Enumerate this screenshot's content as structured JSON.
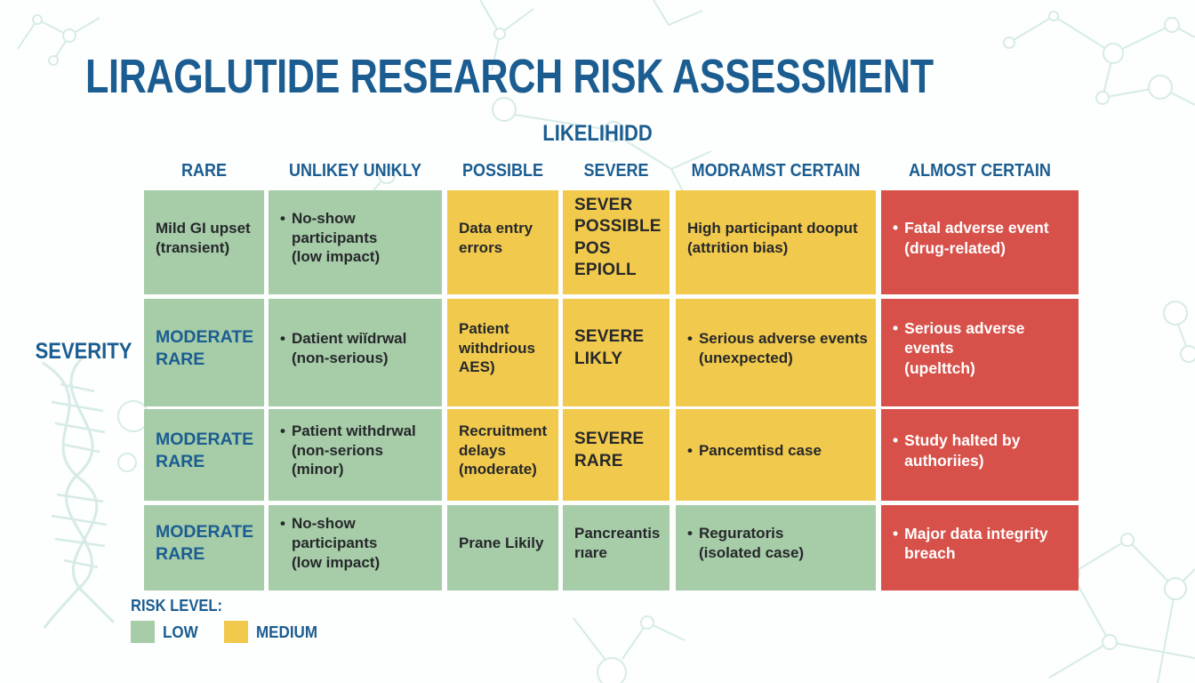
{
  "title": "LIRAGLUTIDE RESEARCH RISK ASSESSMENT",
  "axis": {
    "likelihood_label": "LIKELIHIDD",
    "severity_label": "SEVERITY"
  },
  "columns": [
    "RARE",
    "UNLIKEY UNIKLY",
    "POSSIBLE",
    "SEVERE",
    "MODRAMST CERTAIN",
    "ALMOST CERTAIN"
  ],
  "matrix": {
    "cells": [
      {
        "row": 0,
        "col": 0,
        "tone": "low",
        "style": "dark",
        "bullet": false,
        "lines": [
          "Mild GI upset",
          "(transient)"
        ]
      },
      {
        "row": 0,
        "col": 1,
        "tone": "low",
        "style": "dark",
        "bullet": true,
        "lines": [
          "No-show participants",
          "(low impact)"
        ]
      },
      {
        "row": 0,
        "col": 2,
        "tone": "medium",
        "style": "dark",
        "bullet": false,
        "lines": [
          "Data entry",
          "errors"
        ]
      },
      {
        "row": 0,
        "col": 3,
        "tone": "medium",
        "style": "darkbold",
        "bullet": false,
        "lines": [
          "SEVER",
          "POSSIBLE",
          "POS EPIOLL"
        ]
      },
      {
        "row": 0,
        "col": 4,
        "tone": "medium",
        "style": "dark",
        "bullet": false,
        "lines": [
          "High participant dooput",
          "(attrition bias)"
        ]
      },
      {
        "row": 0,
        "col": 5,
        "tone": "high",
        "style": "white",
        "bullet": true,
        "lines": [
          "Fatal adverse event",
          "(drug-related)"
        ]
      },
      {
        "row": 1,
        "col": 0,
        "tone": "low",
        "style": "blue",
        "bullet": false,
        "lines": [
          "MODERATE",
          "RARE"
        ]
      },
      {
        "row": 1,
        "col": 1,
        "tone": "low",
        "style": "dark",
        "bullet": true,
        "lines": [
          "Datient wiĭdrwal",
          "(non-serious)"
        ]
      },
      {
        "row": 1,
        "col": 2,
        "tone": "medium",
        "style": "dark",
        "bullet": false,
        "lines": [
          "Patient",
          "withdrious",
          "AES)"
        ]
      },
      {
        "row": 1,
        "col": 3,
        "tone": "medium",
        "style": "darkbold",
        "bullet": false,
        "lines": [
          "SEVERE",
          "LIKLY"
        ]
      },
      {
        "row": 1,
        "col": 4,
        "tone": "medium",
        "style": "dark",
        "bullet": true,
        "lines": [
          "Serious adverse events",
          "(unexpected)"
        ]
      },
      {
        "row": 1,
        "col": 5,
        "tone": "high",
        "style": "white",
        "bullet": true,
        "lines": [
          "Serious adverse events",
          "(upelttch)"
        ]
      },
      {
        "row": 2,
        "col": 0,
        "tone": "low",
        "style": "blue",
        "bullet": false,
        "lines": [
          "MODERATE",
          "RARE"
        ]
      },
      {
        "row": 2,
        "col": 1,
        "tone": "low",
        "style": "dark",
        "bullet": true,
        "lines": [
          "Patient withdrwal",
          "(non-serions (minor)"
        ]
      },
      {
        "row": 2,
        "col": 2,
        "tone": "medium",
        "style": "dark",
        "bullet": false,
        "lines": [
          "Recruitment",
          "delays",
          "(moderate)"
        ]
      },
      {
        "row": 2,
        "col": 3,
        "tone": "medium",
        "style": "darkbold",
        "bullet": false,
        "lines": [
          "SEVERE",
          "RARE"
        ]
      },
      {
        "row": 2,
        "col": 4,
        "tone": "medium",
        "style": "dark",
        "bullet": true,
        "lines": [
          "Pancemtisd case"
        ]
      },
      {
        "row": 2,
        "col": 5,
        "tone": "high",
        "style": "white",
        "bullet": true,
        "lines": [
          "Study halted by",
          "authoriies)"
        ]
      },
      {
        "row": 3,
        "col": 0,
        "tone": "low",
        "style": "blue",
        "bullet": false,
        "lines": [
          "MODERATE",
          "RARE"
        ]
      },
      {
        "row": 3,
        "col": 1,
        "tone": "low",
        "style": "dark",
        "bullet": true,
        "lines": [
          "No-show participants",
          "(low impact)"
        ]
      },
      {
        "row": 3,
        "col": 2,
        "tone": "low",
        "style": "dark",
        "bullet": false,
        "lines": [
          "Prane Likily"
        ]
      },
      {
        "row": 3,
        "col": 3,
        "tone": "low",
        "style": "dark",
        "bullet": false,
        "lines": [
          "Pancreantis",
          "rıare"
        ]
      },
      {
        "row": 3,
        "col": 4,
        "tone": "low",
        "style": "dark",
        "bullet": true,
        "lines": [
          "Reguratoris",
          "(isolated case)"
        ]
      },
      {
        "row": 3,
        "col": 5,
        "tone": "high",
        "style": "white",
        "bullet": true,
        "lines": [
          "Major data integrity",
          "breach"
        ]
      }
    ]
  },
  "legend": {
    "heading": "RISK LEVEL:",
    "items": [
      {
        "label": "LOW",
        "tone": "low"
      },
      {
        "label": "MEDIUM",
        "tone": "medium"
      }
    ]
  },
  "colors": {
    "heading_blue": "#1b5d91",
    "cell_text_dark": "#26282a",
    "cell_text_blue": "#1a6191",
    "cell_text_white": "#ffffff",
    "low": "#a6cca8",
    "medium": "#f1c94c",
    "high": "#d7514a",
    "background_line": "#d6ebe7"
  },
  "chart_data": {
    "type": "heatmap",
    "title": "LIRAGLUTIDE RESEARCH RISK ASSESSMENT",
    "xlabel": "LIKELIHIDD",
    "ylabel": "SEVERITY",
    "columns": [
      "RARE",
      "UNLIKEY UNIKLY",
      "POSSIBLE",
      "SEVERE",
      "MODRAMST CERTAIN",
      "ALMOST CERTAIN"
    ],
    "cell_text": [
      [
        "Mild GI upset (transient)",
        "• No-show participants (low impact)",
        "Data entry errors",
        "SEVER POSSIBLE POS EPIOLL",
        "High participant dooput (attrition bias)",
        "• Fatal adverse event (drug-related)"
      ],
      [
        "MODERATE RARE",
        "• Datient wiĭdrwal (non-serious)",
        "Patient withdrious AES)",
        "SEVERE LIKLY",
        "• Serious adverse events (unexpected)",
        "• Serious adverse events (upelttch)"
      ],
      [
        "MODERATE RARE",
        "• Patient withdrwal (non-serions (minor)",
        "Recruitment delays (moderate)",
        "SEVERE RARE",
        "• Pancemtisd case",
        "• Study halted by authoriies)"
      ],
      [
        "MODERATE RARE",
        "• No-show participants (low impact)",
        "Prane Likily",
        "Pancreantis rıare",
        "• Reguratoris (isolated case)",
        "• Major data integrity breach"
      ]
    ],
    "cell_levels": [
      [
        "low",
        "low",
        "medium",
        "medium",
        "medium",
        "high"
      ],
      [
        "low",
        "low",
        "medium",
        "medium",
        "medium",
        "high"
      ],
      [
        "low",
        "low",
        "medium",
        "medium",
        "medium",
        "high"
      ],
      [
        "low",
        "low",
        "low",
        "low",
        "low",
        "high"
      ]
    ],
    "legend": {
      "low": "LOW",
      "medium": "MEDIUM"
    },
    "legend_position": "bottom-left",
    "grid": false
  }
}
